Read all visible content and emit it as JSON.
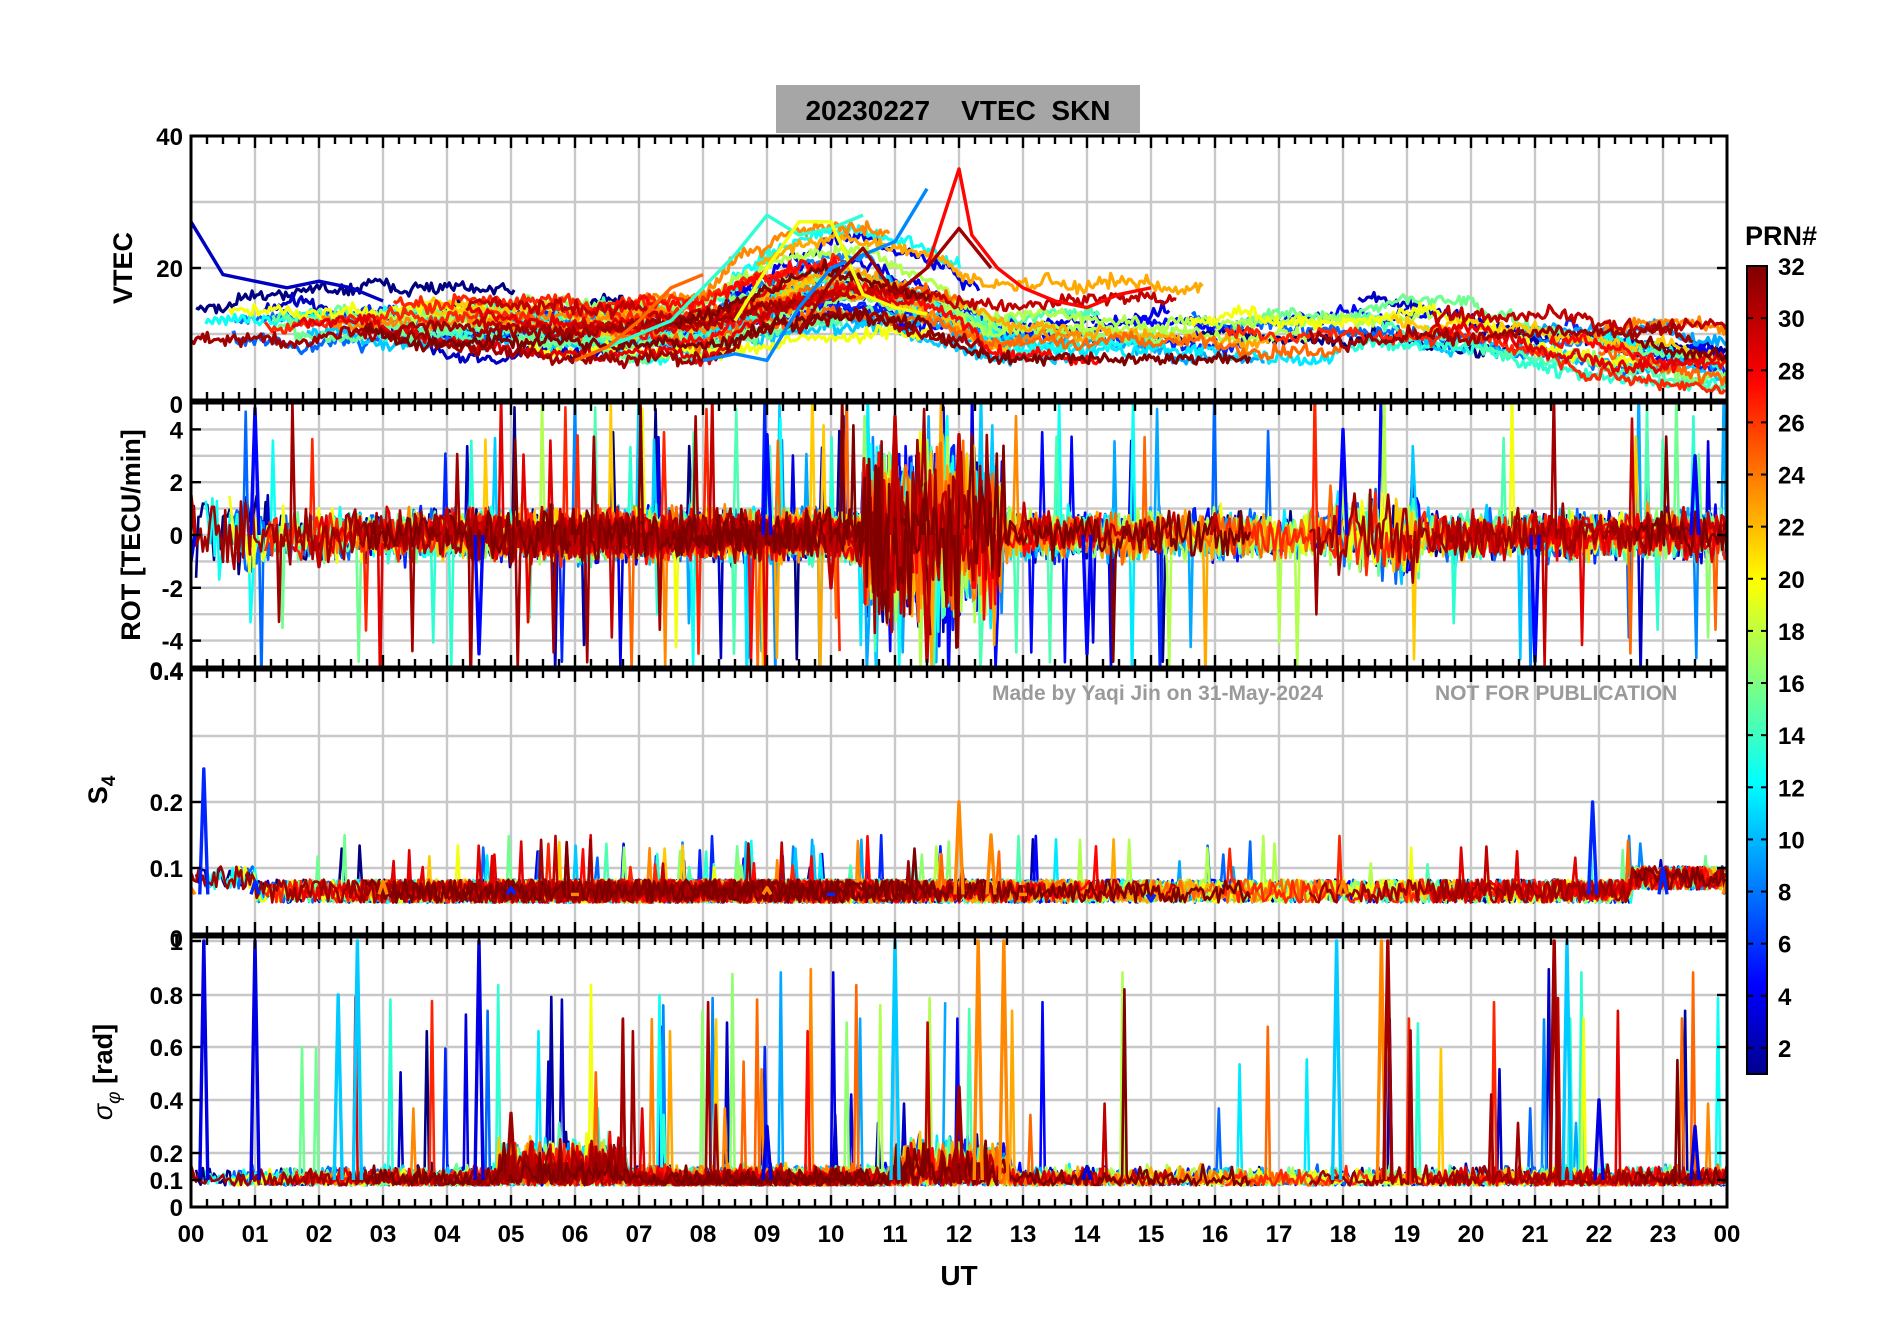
{
  "figure": {
    "title": "20230227    VTEC  SKN",
    "watermark_author": "Made by Yaqi Jin on 31-May-2024",
    "watermark_notice": "NOT FOR PUBLICATION",
    "xlabel": "UT",
    "colorbar": {
      "label": "PRN#",
      "range": [
        1,
        32
      ],
      "ticks": [
        "2",
        "4",
        "6",
        "8",
        "10",
        "12",
        "14",
        "16",
        "18",
        "20",
        "22",
        "24",
        "26",
        "28",
        "30",
        "32"
      ]
    }
  },
  "chart_data": [
    {
      "type": "line",
      "panel": "VTEC",
      "ylabel": "VTEC",
      "xlim": [
        0,
        24
      ],
      "ylim": [
        0,
        40
      ],
      "x_tick_labels": [
        "00",
        "01",
        "02",
        "03",
        "04",
        "05",
        "06",
        "07",
        "08",
        "09",
        "10",
        "11",
        "12",
        "13",
        "14",
        "15",
        "16",
        "17",
        "18",
        "19",
        "20",
        "21",
        "22",
        "23",
        "00"
      ],
      "y_tick_labels": [
        "20",
        "40"
      ],
      "y_ticks": [
        20,
        40
      ],
      "grid": true,
      "series_note": "One trace per GPS satellite PRN, coloured by PRN# (jet colormap)",
      "series": [
        {
          "name": "PRN 3",
          "x": [
            0.0,
            0.5,
            1.0,
            1.5,
            2.0,
            2.5,
            3.0
          ],
          "y": [
            27,
            19,
            18,
            17,
            18,
            17,
            15
          ]
        },
        {
          "name": "PRN 9",
          "x": [
            8.0,
            8.5,
            9.0,
            9.5,
            10.0,
            10.5,
            11.0,
            11.5
          ],
          "y": [
            6,
            7,
            6,
            14,
            20,
            22,
            24,
            32
          ]
        },
        {
          "name": "PRN 14",
          "x": [
            6.5,
            7.0,
            7.5,
            8.0,
            8.5,
            9.0,
            9.5,
            10.0,
            10.5
          ],
          "y": [
            8,
            10,
            12,
            17,
            22,
            28,
            25,
            26,
            28
          ]
        },
        {
          "name": "PRN 20",
          "x": [
            8.5,
            9.0,
            9.5,
            10.0,
            10.5,
            11.0,
            11.5
          ],
          "y": [
            12,
            20,
            27,
            27,
            16,
            14,
            13
          ]
        },
        {
          "name": "PRN 25",
          "x": [
            6.0,
            6.5,
            7.0,
            7.5,
            8.0
          ],
          "y": [
            6,
            8,
            12,
            17,
            19
          ]
        },
        {
          "name": "PRN 28",
          "x": [
            11.5,
            12.0,
            12.2,
            12.6,
            13.0,
            13.5,
            14.0,
            14.5,
            15.0
          ],
          "y": [
            20,
            35,
            25,
            20,
            17,
            15,
            14,
            16,
            17
          ]
        },
        {
          "name": "PRN 31",
          "x": [
            9.5,
            10.0,
            10.5,
            11.0,
            11.5,
            12.0,
            12.5
          ],
          "y": [
            10,
            18,
            23,
            16,
            20,
            26,
            20
          ]
        }
      ]
    },
    {
      "type": "line",
      "panel": "ROT",
      "ylabel": "ROT [TECU/min]",
      "xlim": [
        0,
        24
      ],
      "ylim": [
        -5,
        5
      ],
      "y_tick_labels": [
        "-4",
        "-2",
        "0",
        "2",
        "4"
      ],
      "y_ticks": [
        -4,
        -2,
        0,
        2,
        4
      ],
      "grid": true,
      "series_note": "Rate of TEC per PRN; strongest fluctuations around 10-13 UT and 18-19 UT",
      "series": [
        {
          "name": "PRN 30",
          "x": [
            0,
            2,
            4,
            6,
            8,
            10,
            11,
            11.5,
            12,
            13,
            16,
            19,
            22,
            24
          ],
          "y": [
            1.5,
            -1.2,
            1.0,
            -0.8,
            0.6,
            -2.0,
            4.5,
            -4.8,
            3.8,
            0.5,
            0.8,
            -0.6,
            0.5,
            0.2
          ]
        },
        {
          "name": "PRN 5",
          "x": [
            0,
            1,
            4.5,
            9.0,
            14,
            18,
            21,
            23.5
          ],
          "y": [
            -1.0,
            4.8,
            -4.5,
            3.8,
            -4.5,
            4.0,
            -4.8,
            3.0
          ]
        }
      ]
    },
    {
      "type": "line",
      "panel": "S4",
      "ylabel": "S4",
      "xlim": [
        0,
        24
      ],
      "ylim": [
        0,
        0.4
      ],
      "y_tick_labels": [
        "0.1",
        "0.2",
        "0.4"
      ],
      "y_ticks": [
        0.1,
        0.2,
        0.4
      ],
      "grid": true,
      "series_note": "Amplitude scintillation index per PRN, mostly 0.05-0.1 with spikes",
      "series": [
        {
          "name": "PRN 6",
          "x": [
            0.2,
            1.0,
            5.0,
            10.0,
            15.0,
            21.9,
            23.0,
            24.0
          ],
          "y": [
            0.25,
            0.08,
            0.07,
            0.06,
            0.05,
            0.2,
            0.1,
            0.07
          ]
        },
        {
          "name": "PRN 24",
          "x": [
            0.0,
            3.0,
            6.0,
            9.0,
            12.0,
            12.5,
            13.0,
            18.0,
            24.0
          ],
          "y": [
            0.07,
            0.08,
            0.06,
            0.07,
            0.2,
            0.15,
            0.06,
            0.08,
            0.08
          ]
        }
      ]
    },
    {
      "type": "line",
      "panel": "SigmaPhi",
      "ylabel": "σ_φ [rad]",
      "xlim": [
        0,
        24
      ],
      "ylim": [
        0,
        1
      ],
      "y_tick_labels": [
        "0",
        "0.1",
        "0.2",
        "0.4",
        "0.6",
        "0.8",
        "1"
      ],
      "y_ticks": [
        0,
        0.1,
        0.2,
        0.4,
        0.6,
        0.8,
        1
      ],
      "grid": true,
      "series_note": "Phase scintillation index per PRN; spikes near 00-01, 02.5, 04.5, 11-12.5, 18-19, 21.5 UT",
      "series": [
        {
          "name": "PRN 4",
          "x": [
            0.2,
            1.0,
            4.5,
            9.0,
            14.0,
            22.0,
            23.5
          ],
          "y": [
            1.0,
            1.0,
            1.0,
            0.3,
            0.15,
            0.4,
            0.3
          ]
        },
        {
          "name": "PRN 11",
          "x": [
            2.3,
            2.6,
            11.0,
            17.9,
            21.5
          ],
          "y": [
            0.8,
            1.0,
            1.0,
            1.0,
            1.0
          ]
        },
        {
          "name": "PRN 24",
          "x": [
            12.3,
            12.7,
            18.6
          ],
          "y": [
            1.0,
            1.0,
            1.0
          ]
        },
        {
          "name": "PRN 31",
          "x": [
            0.0,
            5.0,
            12.0,
            18.7,
            21.3,
            24.0
          ],
          "y": [
            0.15,
            0.35,
            0.45,
            1.0,
            1.0,
            0.15
          ]
        }
      ]
    }
  ]
}
